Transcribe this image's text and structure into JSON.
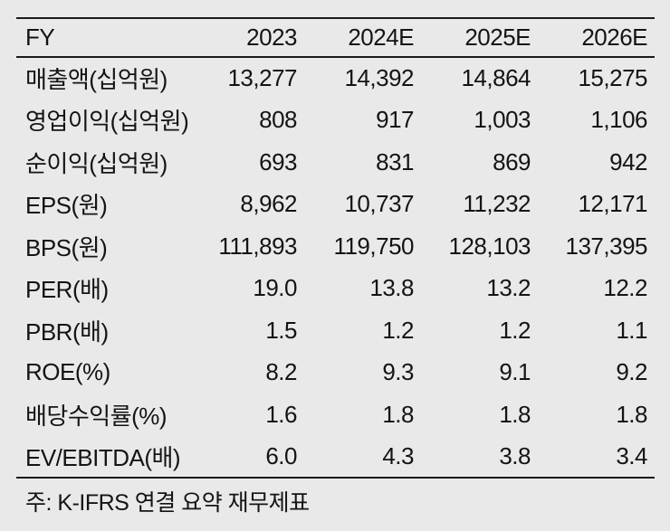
{
  "colors": {
    "background": "#e9e9e9",
    "text": "#141414",
    "rule": "#1a1a1a"
  },
  "table": {
    "header": [
      "FY",
      "2023",
      "2024E",
      "2025E",
      "2026E"
    ],
    "rows": [
      {
        "label": "매출액(십억원)",
        "values": [
          "13,277",
          "14,392",
          "14,864",
          "15,275"
        ]
      },
      {
        "label": "영업이익(십억원)",
        "values": [
          "808",
          "917",
          "1,003",
          "1,106"
        ]
      },
      {
        "label": "순이익(십억원)",
        "values": [
          "693",
          "831",
          "869",
          "942"
        ]
      },
      {
        "label": "EPS(원)",
        "values": [
          "8,962",
          "10,737",
          "11,232",
          "12,171"
        ]
      },
      {
        "label": "BPS(원)",
        "values": [
          "111,893",
          "119,750",
          "128,103",
          "137,395"
        ]
      },
      {
        "label": "PER(배)",
        "values": [
          "19.0",
          "13.8",
          "13.2",
          "12.2"
        ]
      },
      {
        "label": "PBR(배)",
        "values": [
          "1.5",
          "1.2",
          "1.2",
          "1.1"
        ]
      },
      {
        "label": "ROE(%)",
        "values": [
          "8.2",
          "9.3",
          "9.1",
          "9.2"
        ]
      },
      {
        "label": "배당수익률(%)",
        "values": [
          "1.6",
          "1.8",
          "1.8",
          "1.8"
        ]
      },
      {
        "label": "EV/EBITDA(배)",
        "values": [
          "6.0",
          "4.3",
          "3.8",
          "3.4"
        ]
      }
    ],
    "footnote": "주: K-IFRS 연결 요약 재무제표"
  }
}
